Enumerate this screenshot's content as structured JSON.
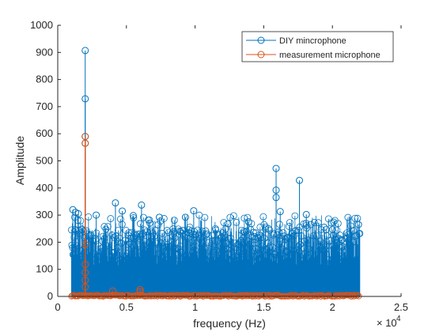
{
  "chart_data": {
    "type": "stem",
    "xlabel": "frequency (Hz)",
    "ylabel": "Amplitude",
    "x_exponent_label": "× 10",
    "x_exponent_power": "4",
    "xlim": [
      0,
      25000
    ],
    "ylim": [
      0,
      1000
    ],
    "x_ticks": [
      0,
      5000,
      10000,
      15000,
      20000,
      25000
    ],
    "x_tick_labels": [
      "0",
      "0.5",
      "1",
      "1.5",
      "2",
      "2.5"
    ],
    "y_ticks": [
      0,
      100,
      200,
      300,
      400,
      500,
      600,
      700,
      800,
      900,
      1000
    ],
    "y_tick_labels": [
      "0",
      "100",
      "200",
      "300",
      "400",
      "500",
      "600",
      "700",
      "800",
      "900",
      "1000"
    ],
    "legend_position": "top-right",
    "series": [
      {
        "name": "DIY mincrophone",
        "color": "#0072BD",
        "dense_band": {
          "x_range": [
            1000,
            22000
          ],
          "typical_max": 250,
          "max_envelope": 300
        },
        "points": [
          {
            "x": 2000,
            "y": 907
          },
          {
            "x": 2000,
            "y": 729
          },
          {
            "x": 2000,
            "y": 590
          },
          {
            "x": 2000,
            "y": 565
          },
          {
            "x": 1100,
            "y": 320
          },
          {
            "x": 1300,
            "y": 310
          },
          {
            "x": 1500,
            "y": 305
          },
          {
            "x": 2800,
            "y": 300
          },
          {
            "x": 4200,
            "y": 345
          },
          {
            "x": 4700,
            "y": 315
          },
          {
            "x": 5500,
            "y": 298
          },
          {
            "x": 6100,
            "y": 337
          },
          {
            "x": 7400,
            "y": 292
          },
          {
            "x": 9300,
            "y": 292
          },
          {
            "x": 9900,
            "y": 316
          },
          {
            "x": 12400,
            "y": 268
          },
          {
            "x": 13900,
            "y": 275
          },
          {
            "x": 15900,
            "y": 472
          },
          {
            "x": 15900,
            "y": 392
          },
          {
            "x": 15900,
            "y": 365
          },
          {
            "x": 16200,
            "y": 313
          },
          {
            "x": 17600,
            "y": 428
          },
          {
            "x": 18100,
            "y": 302
          },
          {
            "x": 19400,
            "y": 255
          },
          {
            "x": 21900,
            "y": 265
          }
        ]
      },
      {
        "name": "measurement microphone",
        "color": "#D95319",
        "baseline": {
          "x_range": [
            1000,
            22000
          ],
          "typical_max": 5
        },
        "points": [
          {
            "x": 2000,
            "y": 590
          },
          {
            "x": 2000,
            "y": 565
          },
          {
            "x": 2000,
            "y": 192
          },
          {
            "x": 2000,
            "y": 118
          },
          {
            "x": 2000,
            "y": 88
          },
          {
            "x": 2000,
            "y": 60
          },
          {
            "x": 2000,
            "y": 35
          },
          {
            "x": 4000,
            "y": 20
          },
          {
            "x": 6000,
            "y": 25
          },
          {
            "x": 6000,
            "y": 18
          }
        ]
      }
    ]
  }
}
